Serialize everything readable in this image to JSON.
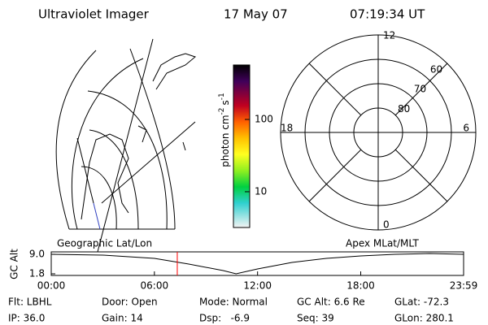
{
  "header": {
    "title": "Ultraviolet Imager",
    "date": "17 May 07",
    "time": "07:19:34 UT"
  },
  "map": {
    "label": "Geographic Lat/Lon"
  },
  "colorbar": {
    "label": "photon cm",
    "exp1": "-2",
    "unit2": "s",
    "exp2": "-1",
    "log": true,
    "clim": [
      3.2,
      566
    ],
    "ticks": [
      10,
      100
    ]
  },
  "polar": {
    "label": "Apex MLat/MLT",
    "rlim": [
      90,
      50
    ],
    "rings": [
      60,
      70,
      80
    ],
    "mlt": [
      12,
      18,
      6,
      0
    ]
  },
  "chart_data": {
    "type": "line",
    "ylabel": "GC Alt",
    "x": [
      0,
      3,
      6,
      8,
      10,
      10.75,
      12,
      14,
      16,
      18,
      20,
      22,
      23.983
    ],
    "values": [
      9.0,
      8.7,
      7.5,
      5.4,
      3.0,
      1.8,
      3.6,
      6.0,
      7.5,
      8.4,
      9.0,
      9.3,
      9.0
    ],
    "color": "#000000",
    "marker": 7.33,
    "marker_color": "#ff0000",
    "xlim": [
      0,
      23.983
    ],
    "ylim": [
      1.2,
      9.9
    ],
    "xticks": [
      {
        "value": 0,
        "label": "00:00"
      },
      {
        "value": 6,
        "label": "06:00"
      },
      {
        "value": 12,
        "label": "12:00"
      },
      {
        "value": 18,
        "label": "18:00"
      },
      {
        "value": 23.983,
        "label": "23:59"
      }
    ],
    "yticks": [
      {
        "value": 1.8,
        "label": "1.8"
      },
      {
        "value": 9.0,
        "label": "9.0"
      }
    ]
  },
  "info": [
    [
      "Flt: LBHL",
      "Door: Open",
      "Mode: Normal",
      "GC Alt: 6.6 Re",
      "GLat: -72.3"
    ],
    [
      "IP: 36.0",
      "Gain: 14",
      "Dsp:   -6.9",
      "Seq: 39",
      "GLon: 280.1"
    ]
  ]
}
